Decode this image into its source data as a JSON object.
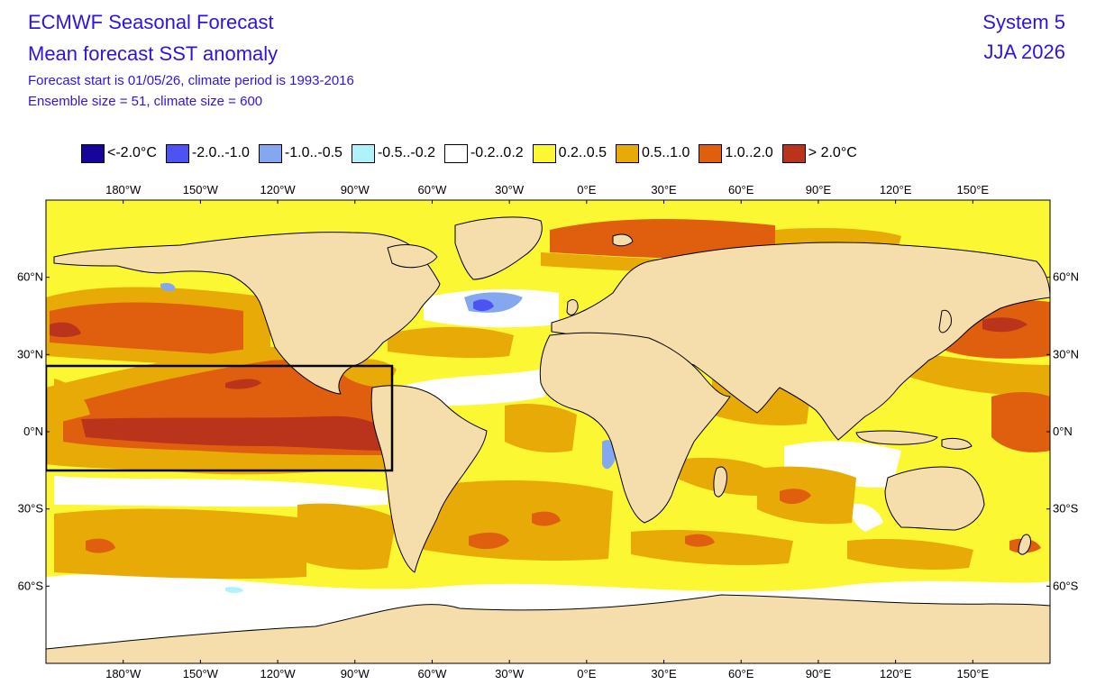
{
  "header": {
    "title": "ECMWF Seasonal Forecast",
    "subtitle": "Mean forecast SST anomaly",
    "line3": "Forecast start is 01/05/26, climate period is 1993-2016",
    "line4": "Ensemble size = 51, climate size = 600",
    "system": "System 5",
    "season": "JJA 2026"
  },
  "legend": [
    {
      "label": "<-2.0°C",
      "color": "#17049a"
    },
    {
      "label": "-2.0..-1.0",
      "color": "#4d52f2"
    },
    {
      "label": "-1.0..-0.5",
      "color": "#84a7ef"
    },
    {
      "label": "-0.5..-0.2",
      "color": "#aef2fa"
    },
    {
      "label": "-0.2..0.2",
      "color": "#ffffff"
    },
    {
      "label": "0.2..0.5",
      "color": "#fbf733"
    },
    {
      "label": "0.5..1.0",
      "color": "#e7aa07"
    },
    {
      "label": "1.0..2.0",
      "color": "#df5f0f"
    },
    {
      "label": "> 2.0°C",
      "color": "#b9341a"
    }
  ],
  "axes": {
    "lon_labels": [
      "180°W",
      "150°W",
      "120°W",
      "90°W",
      "60°W",
      "30°W",
      "0°E",
      "30°E",
      "60°E",
      "90°E",
      "120°E",
      "150°E"
    ],
    "lon_values": [
      -180,
      -150,
      -120,
      -90,
      -60,
      -30,
      0,
      30,
      60,
      90,
      120,
      150
    ],
    "lat_labels": [
      "60°N",
      "30°N",
      "0°N",
      "30°S",
      "60°S"
    ],
    "lat_values": [
      60,
      30,
      0,
      -30,
      -60
    ],
    "lon_range": [
      -210,
      180
    ],
    "lat_range": [
      -90,
      90
    ]
  },
  "colors": {
    "land": "#f6deac",
    "ocean_default": "#fbf733",
    "no_anomaly": "#ffffff",
    "box": "#000000"
  },
  "highlight_box": {
    "lon": [
      -210,
      -75
    ],
    "lat": [
      -15,
      25
    ]
  }
}
